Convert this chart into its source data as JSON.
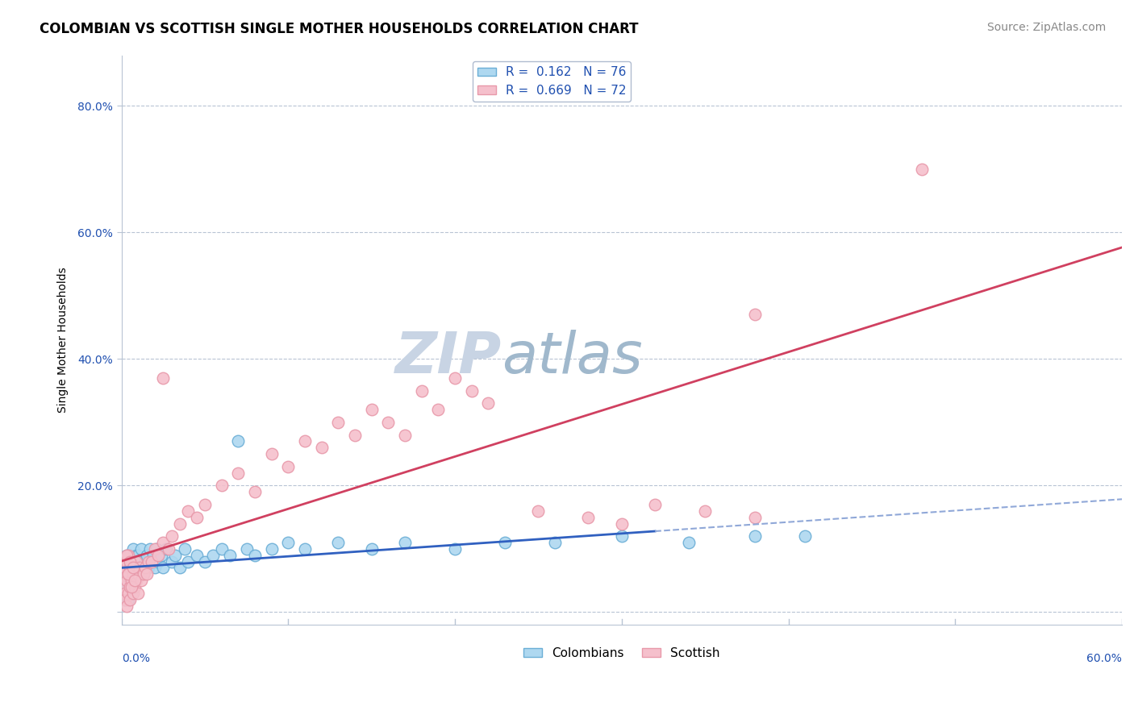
{
  "title": "COLOMBIAN VS SCOTTISH SINGLE MOTHER HOUSEHOLDS CORRELATION CHART",
  "source": "Source: ZipAtlas.com",
  "ylabel": "Single Mother Households",
  "x_lim": [
    0.0,
    0.6
  ],
  "y_lim": [
    -0.02,
    0.88
  ],
  "colombian_R": 0.162,
  "colombian_N": 76,
  "scottish_R": 0.669,
  "scottish_N": 72,
  "colombian_color": "#6baed6",
  "colombian_face": "#aed8f0",
  "scottish_color": "#e899aa",
  "scottish_face": "#f5c0cc",
  "trend_colombian_color": "#3060c0",
  "trend_scottish_color": "#d04060",
  "trend_colombian_dash_color": "#90a8d8",
  "legend_text_color": "#2050b0",
  "watermark_zip_color": "#c8d4e4",
  "watermark_atlas_color": "#a0b8cc",
  "background_color": "#ffffff",
  "plot_bg_color": "#ffffff",
  "grid_color": "#b8c4d4",
  "title_fontsize": 12,
  "source_fontsize": 10,
  "legend_fontsize": 11,
  "axis_label_fontsize": 10,
  "tick_fontsize": 10,
  "y_tick_vals": [
    0.0,
    0.2,
    0.4,
    0.6,
    0.8
  ],
  "y_tick_labels": [
    "",
    "20.0%",
    "40.0%",
    "60.0%",
    "80.0%"
  ],
  "colombian_x": [
    0.001,
    0.001,
    0.001,
    0.002,
    0.002,
    0.002,
    0.002,
    0.003,
    0.003,
    0.003,
    0.003,
    0.004,
    0.004,
    0.004,
    0.005,
    0.005,
    0.005,
    0.006,
    0.006,
    0.006,
    0.007,
    0.007,
    0.008,
    0.008,
    0.009,
    0.009,
    0.01,
    0.01,
    0.011,
    0.012,
    0.012,
    0.013,
    0.014,
    0.015,
    0.016,
    0.017,
    0.018,
    0.019,
    0.02,
    0.021,
    0.022,
    0.024,
    0.025,
    0.027,
    0.03,
    0.032,
    0.035,
    0.038,
    0.04,
    0.045,
    0.05,
    0.055,
    0.06,
    0.065,
    0.07,
    0.075,
    0.08,
    0.09,
    0.1,
    0.11,
    0.13,
    0.15,
    0.17,
    0.2,
    0.23,
    0.26,
    0.3,
    0.34,
    0.38,
    0.41,
    0.002,
    0.003,
    0.004,
    0.005,
    0.006,
    0.007
  ],
  "colombian_y": [
    0.04,
    0.06,
    0.03,
    0.07,
    0.05,
    0.08,
    0.04,
    0.06,
    0.09,
    0.03,
    0.07,
    0.05,
    0.08,
    0.04,
    0.06,
    0.09,
    0.05,
    0.07,
    0.04,
    0.08,
    0.06,
    0.1,
    0.05,
    0.08,
    0.07,
    0.09,
    0.06,
    0.09,
    0.08,
    0.07,
    0.1,
    0.06,
    0.08,
    0.09,
    0.07,
    0.1,
    0.08,
    0.09,
    0.07,
    0.1,
    0.08,
    0.09,
    0.07,
    0.1,
    0.08,
    0.09,
    0.07,
    0.1,
    0.08,
    0.09,
    0.08,
    0.09,
    0.1,
    0.09,
    0.27,
    0.1,
    0.09,
    0.1,
    0.11,
    0.1,
    0.11,
    0.1,
    0.11,
    0.1,
    0.11,
    0.11,
    0.12,
    0.11,
    0.12,
    0.12,
    0.02,
    0.03,
    0.02,
    0.04,
    0.03,
    0.05
  ],
  "scottish_x": [
    0.001,
    0.001,
    0.002,
    0.002,
    0.002,
    0.003,
    0.003,
    0.003,
    0.004,
    0.004,
    0.004,
    0.005,
    0.005,
    0.005,
    0.006,
    0.006,
    0.007,
    0.007,
    0.008,
    0.008,
    0.009,
    0.009,
    0.01,
    0.01,
    0.011,
    0.012,
    0.013,
    0.014,
    0.015,
    0.016,
    0.018,
    0.02,
    0.022,
    0.025,
    0.028,
    0.03,
    0.035,
    0.04,
    0.045,
    0.05,
    0.06,
    0.07,
    0.08,
    0.09,
    0.1,
    0.11,
    0.12,
    0.13,
    0.14,
    0.15,
    0.16,
    0.17,
    0.18,
    0.19,
    0.2,
    0.21,
    0.22,
    0.25,
    0.28,
    0.3,
    0.32,
    0.35,
    0.38,
    0.003,
    0.004,
    0.005,
    0.006,
    0.007,
    0.008,
    0.025,
    0.48,
    0.38
  ],
  "scottish_y": [
    0.04,
    0.06,
    0.03,
    0.07,
    0.02,
    0.08,
    0.05,
    0.01,
    0.06,
    0.03,
    0.09,
    0.04,
    0.07,
    0.02,
    0.08,
    0.05,
    0.06,
    0.03,
    0.07,
    0.04,
    0.08,
    0.05,
    0.06,
    0.03,
    0.07,
    0.05,
    0.06,
    0.07,
    0.06,
    0.08,
    0.08,
    0.1,
    0.09,
    0.11,
    0.1,
    0.12,
    0.14,
    0.16,
    0.15,
    0.17,
    0.2,
    0.22,
    0.19,
    0.25,
    0.23,
    0.27,
    0.26,
    0.3,
    0.28,
    0.32,
    0.3,
    0.28,
    0.35,
    0.32,
    0.37,
    0.35,
    0.33,
    0.16,
    0.15,
    0.14,
    0.17,
    0.16,
    0.15,
    0.09,
    0.06,
    0.08,
    0.04,
    0.07,
    0.05,
    0.37,
    0.7,
    0.47
  ]
}
